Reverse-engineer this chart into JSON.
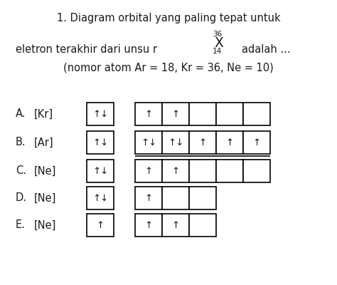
{
  "title_line1": "1. Diagram orbital yang paling tepat untuk",
  "title_line2_pre": "eletron terakhir dari unsu r",
  "title_line2_post": "adalah ...",
  "title_line3": "(nomor atom Ar = 18, Kr = 36, Ne = 10)",
  "superscript": "36",
  "subscript": "14",
  "element": "X",
  "bg_color": "#ffffff",
  "text_color": "#1a1a1a",
  "rows": [
    {
      "label": "A.",
      "core": "[Kr]",
      "first_box": "↑↓",
      "second_group_boxes": [
        "↑",
        "↑",
        "",
        "",
        ""
      ],
      "second_group_count": 5,
      "underline": false
    },
    {
      "label": "B.",
      "core": "[Ar]",
      "first_box": "↑↓",
      "second_group_boxes": [
        "↑↓",
        "↑↓",
        "↑",
        "↑",
        "↑"
      ],
      "second_group_count": 5,
      "underline": true
    },
    {
      "label": "C.",
      "core": "[Ne]",
      "first_box": "↑↓",
      "second_group_boxes": [
        "↑",
        "↑",
        "",
        "",
        ""
      ],
      "second_group_count": 5,
      "underline": false
    },
    {
      "label": "D.",
      "core": "[Ne]",
      "first_box": "↑↓",
      "second_group_boxes": [
        "↑",
        "",
        ""
      ],
      "second_group_count": 3,
      "underline": false
    },
    {
      "label": "E.",
      "core": "[Ne]",
      "first_box": "↑",
      "second_group_boxes": [
        "↑",
        "↑",
        ""
      ],
      "second_group_count": 3,
      "underline": false
    }
  ],
  "font_size": 10.5,
  "arrow_font_size": 9.5,
  "sup_sub_fontsize": 7.5
}
